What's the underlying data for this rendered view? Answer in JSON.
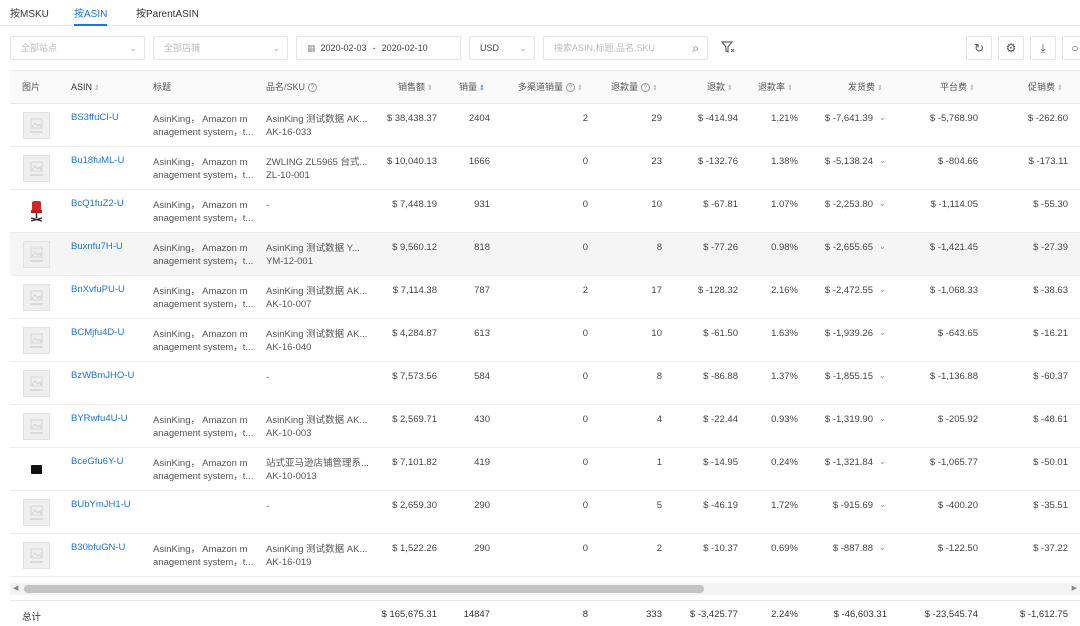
{
  "tabs": [
    {
      "label": "按MSKU",
      "active": false
    },
    {
      "label": "按ASIN",
      "active": true
    },
    {
      "label": "按ParentASIN",
      "active": false
    }
  ],
  "filters": {
    "site_placeholder": "全部站点",
    "store_placeholder": "全部店铺",
    "date_start": "2020-02-03",
    "date_sep": "-",
    "date_end": "2020-02-10",
    "currency": "USD",
    "search_placeholder": "搜索ASIN,标题,品名,SKU"
  },
  "columns": {
    "image": "图片",
    "asin": "ASIN",
    "title": "标题",
    "name_sku": "品名/SKU",
    "sales": "销售额",
    "qty": "销量",
    "multi": "多渠道销量",
    "returns": "退款量",
    "refund": "退款",
    "refund_rate": "退款率",
    "shipping": "发货费",
    "platform": "平台费",
    "promo": "促销费"
  },
  "rows": [
    {
      "thumb": "placeholder",
      "asin": "BS3ffuCI-U",
      "title1": "AsinKing， Amazon m",
      "title2": "anagement system，t...",
      "sku1": "AsinKing 测试数据 AK...",
      "sku2": "AK-16-033",
      "sales": "$ 38,438.37",
      "qty": "2404",
      "multi": "2",
      "returns": "29",
      "refund": "$ -414.94",
      "rate": "1.21%",
      "ship": "$ -7,641.39",
      "plat": "$ -5,768.90",
      "promo": "$ -262.60",
      "hl": false
    },
    {
      "thumb": "placeholder",
      "asin": "Bu18fuML-U",
      "title1": "AsinKing， Amazon m",
      "title2": "anagement system，t...",
      "sku1": "ZWLING ZL5965 台式...",
      "sku2": "ZL-10-001",
      "sales": "$ 10,040.13",
      "qty": "1666",
      "multi": "0",
      "returns": "23",
      "refund": "$ -132.76",
      "rate": "1.38%",
      "ship": "$ -5,138.24",
      "plat": "$ -804.66",
      "promo": "$ -173.11",
      "hl": false
    },
    {
      "thumb": "chair",
      "asin": "BcQ1fuZ2-U",
      "title1": "AsinKing， Amazon m",
      "title2": "anagement system，t...",
      "sku1": "-",
      "sku2": "",
      "sales": "$ 7,448.19",
      "qty": "931",
      "multi": "0",
      "returns": "10",
      "refund": "$ -67.81",
      "rate": "1.07%",
      "ship": "$ -2,253.80",
      "plat": "$ -1,114.05",
      "promo": "$ -55.30",
      "hl": false
    },
    {
      "thumb": "placeholder",
      "asin": "Buxnfu7H-U",
      "title1": "AsinKing， Amazon m",
      "title2": "anagement system，t...",
      "sku1": "AsinKing 测试数据 Y...",
      "sku2": "YM-12-001",
      "sales": "$ 9,560.12",
      "qty": "818",
      "multi": "0",
      "returns": "8",
      "refund": "$ -77.26",
      "rate": "0.98%",
      "ship": "$ -2,655.65",
      "plat": "$ -1,421.45",
      "promo": "$ -27.39",
      "hl": true
    },
    {
      "thumb": "placeholder",
      "asin": "BnXvfuPU-U",
      "title1": "AsinKing， Amazon m",
      "title2": "anagement system，t...",
      "sku1": "AsinKing 测试数据 AK...",
      "sku2": "AK-10-007",
      "sales": "$ 7,114.38",
      "qty": "787",
      "multi": "2",
      "returns": "17",
      "refund": "$ -128.32",
      "rate": "2.16%",
      "ship": "$ -2,472.55",
      "plat": "$ -1,068.33",
      "promo": "$ -38.63",
      "hl": false
    },
    {
      "thumb": "placeholder",
      "asin": "BCMjfu4D-U",
      "title1": "AsinKing， Amazon m",
      "title2": "anagement system，t...",
      "sku1": "AsinKing 测试数据 AK...",
      "sku2": "AK-16-040",
      "sales": "$ 4,284.87",
      "qty": "613",
      "multi": "0",
      "returns": "10",
      "refund": "$ -61.50",
      "rate": "1.63%",
      "ship": "$ -1,939.26",
      "plat": "$ -643.65",
      "promo": "$ -16.21",
      "hl": false
    },
    {
      "thumb": "placeholder",
      "asin": "BzWBmJHO-U",
      "title1": "",
      "title2": "",
      "sku1": "-",
      "sku2": "",
      "sales": "$ 7,573.56",
      "qty": "584",
      "multi": "0",
      "returns": "8",
      "refund": "$ -86.88",
      "rate": "1.37%",
      "ship": "$ -1,855.15",
      "plat": "$ -1,136.88",
      "promo": "$ -60.37",
      "hl": false
    },
    {
      "thumb": "placeholder",
      "asin": "BYRwfu4U-U",
      "title1": "AsinKing， Amazon m",
      "title2": "anagement system，t...",
      "sku1": "AsinKing 测试数据 AK...",
      "sku2": "AK-10-003",
      "sales": "$ 2,569.71",
      "qty": "430",
      "multi": "0",
      "returns": "4",
      "refund": "$ -22.44",
      "rate": "0.93%",
      "ship": "$ -1,319.90",
      "plat": "$ -205.92",
      "promo": "$ -48.61",
      "hl": false
    },
    {
      "thumb": "black",
      "asin": "BceGfu6Y-U",
      "title1": "AsinKing， Amazon m",
      "title2": "anagement system，t...",
      "sku1": "站式亚马逊店铺管理系...",
      "sku2": "AK-10-0013",
      "sales": "$ 7,101.82",
      "qty": "419",
      "multi": "0",
      "returns": "1",
      "refund": "$ -14.95",
      "rate": "0.24%",
      "ship": "$ -1,321.84",
      "plat": "$ -1,065.77",
      "promo": "$ -50.01",
      "hl": false
    },
    {
      "thumb": "placeholder",
      "asin": "BUbYmJH1-U",
      "title1": "",
      "title2": "",
      "sku1": "-",
      "sku2": "",
      "sales": "$ 2,659.30",
      "qty": "290",
      "multi": "0",
      "returns": "5",
      "refund": "$ -46.19",
      "rate": "1.72%",
      "ship": "$ -915.69",
      "plat": "$ -400.20",
      "promo": "$ -35.51",
      "hl": false
    },
    {
      "thumb": "placeholder",
      "asin": "B30bfuGN-U",
      "title1": "AsinKing， Amazon m",
      "title2": "anagement system，t...",
      "sku1": "AsinKing 测试数据 AK...",
      "sku2": "AK-16-019",
      "sales": "$ 1,522.26",
      "qty": "290",
      "multi": "0",
      "returns": "2",
      "refund": "$ -10.37",
      "rate": "0.69%",
      "ship": "$ -887.88",
      "plat": "$ -122.50",
      "promo": "$ -37.22",
      "hl": false
    }
  ],
  "totals": {
    "label": "总计",
    "sales": "$ 165,675.31",
    "qty": "14847",
    "multi": "8",
    "returns": "333",
    "refund": "$ -3,425.77",
    "rate": "2.24%",
    "ship": "$ -46,603.31",
    "plat": "$ -23,545.74",
    "promo": "$ -1,612.75"
  },
  "colors": {
    "accent": "#1a73e8"
  }
}
